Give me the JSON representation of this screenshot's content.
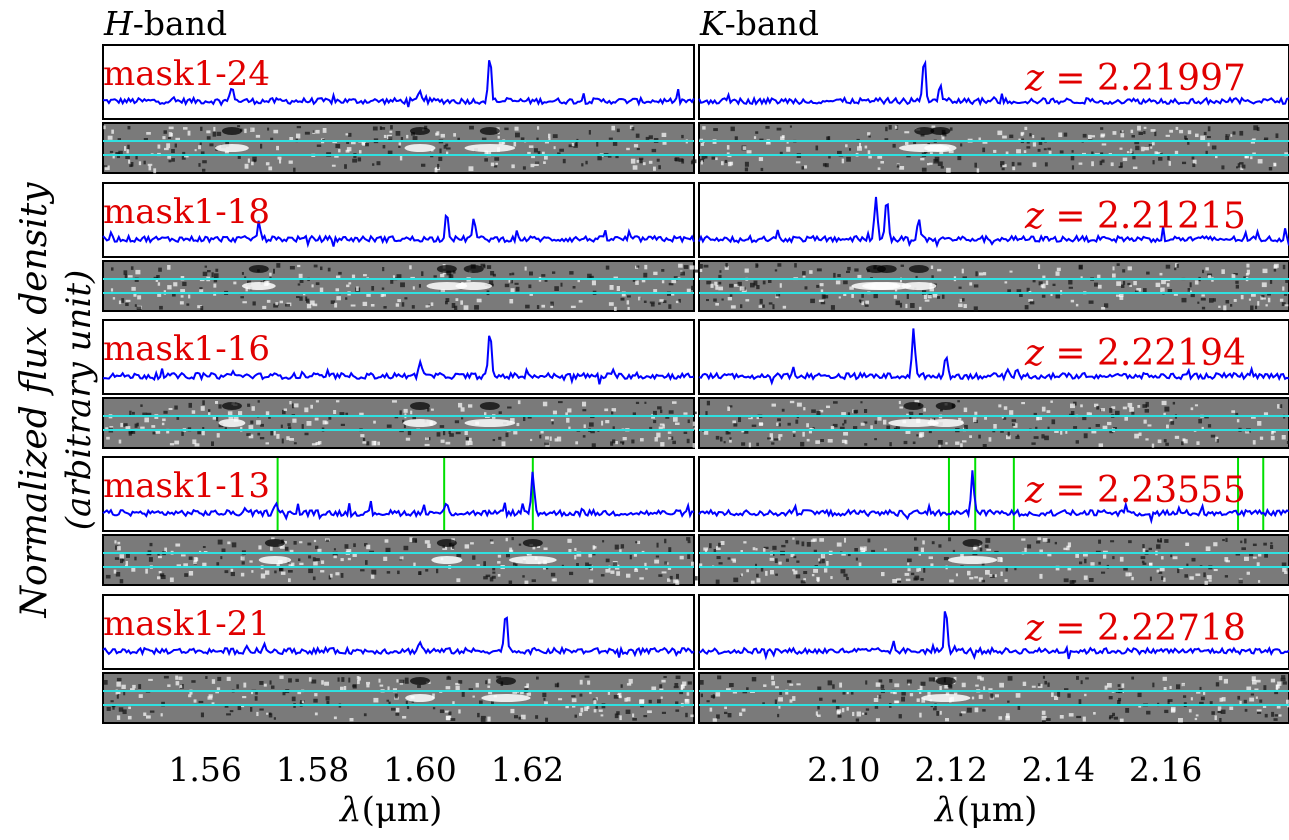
{
  "bands": {
    "h": {
      "prefix": "H",
      "suffix": "-band"
    },
    "k": {
      "prefix": "K",
      "suffix": "-band"
    }
  },
  "ylabel": {
    "line1": "Normalized flux density",
    "line2": "(arbitrary unit)"
  },
  "xlabel": {
    "lambda": "λ",
    "unit": "(μm)"
  },
  "colors": {
    "spectrum": "#0000ff",
    "label": "#e00000",
    "line_marker": "#00e000",
    "aperture": "#30e0e0",
    "frame": "#000000"
  },
  "chart_data": [
    {
      "type": "line",
      "panel": "H-band",
      "xlabel": "λ(μm)",
      "xticks": [
        1.56,
        1.58,
        1.6,
        1.62
      ],
      "xlim": [
        1.541,
        1.651
      ],
      "series": [
        {
          "name": "mask1-24",
          "emission_peaks": [
            {
              "x": 1.565,
              "y": 0.35
            },
            {
              "x": 1.6,
              "y": 0.25
            },
            {
              "x": 1.613,
              "y": 0.95
            }
          ]
        },
        {
          "name": "mask1-18",
          "emission_peaks": [
            {
              "x": 1.57,
              "y": 0.35
            },
            {
              "x": 1.605,
              "y": 0.6
            },
            {
              "x": 1.61,
              "y": 0.45
            }
          ]
        },
        {
          "name": "mask1-16",
          "emission_peaks": [
            {
              "x": 1.565,
              "y": 0.1
            },
            {
              "x": 1.6,
              "y": 0.35
            },
            {
              "x": 1.613,
              "y": 0.95
            }
          ]
        },
        {
          "name": "mask1-13",
          "emission_peaks": [
            {
              "x": 1.573,
              "y": 0.3
            },
            {
              "x": 1.605,
              "y": 0.25
            },
            {
              "x": 1.621,
              "y": 0.85
            }
          ],
          "line_markers": [
            1.5735,
            1.6045,
            1.621
          ]
        },
        {
          "name": "mask1-21",
          "emission_peaks": [
            {
              "x": 1.6,
              "y": 0.2
            },
            {
              "x": 1.616,
              "y": 0.9
            }
          ]
        }
      ]
    },
    {
      "type": "line",
      "panel": "K-band",
      "xlabel": "λ(μm)",
      "xticks": [
        2.1,
        2.12,
        2.14,
        2.16
      ],
      "xlim": [
        2.073,
        2.183
      ],
      "series": [
        {
          "name": "z = 2.21997",
          "emission_peaks": [
            {
              "x": 2.115,
              "y": 0.95
            },
            {
              "x": 2.118,
              "y": 0.3
            }
          ]
        },
        {
          "name": "z = 2.21215",
          "emission_peaks": [
            {
              "x": 2.106,
              "y": 0.9
            },
            {
              "x": 2.108,
              "y": 0.9
            },
            {
              "x": 2.114,
              "y": 0.4
            }
          ]
        },
        {
          "name": "z = 2.22194",
          "emission_peaks": [
            {
              "x": 2.113,
              "y": 0.95
            },
            {
              "x": 2.119,
              "y": 0.45
            }
          ]
        },
        {
          "name": "z = 2.23555",
          "emission_peaks": [
            {
              "x": 2.124,
              "y": 0.9
            }
          ],
          "line_markers": [
            2.1196,
            2.1245,
            2.1317,
            2.1735,
            2.1782
          ]
        },
        {
          "name": "z = 2.22718",
          "emission_peaks": [
            {
              "x": 2.119,
              "y": 0.9
            }
          ]
        }
      ]
    }
  ],
  "panels": [
    {
      "mask": "mask1-24",
      "z_eq": "= 2.21997"
    },
    {
      "mask": "mask1-18",
      "z_eq": "= 2.21215"
    },
    {
      "mask": "mask1-16",
      "z_eq": "= 2.22194"
    },
    {
      "mask": "mask1-13",
      "z_eq": "= 2.23555"
    },
    {
      "mask": "mask1-21",
      "z_eq": "= 2.22718"
    }
  ],
  "z_symbol": "z"
}
